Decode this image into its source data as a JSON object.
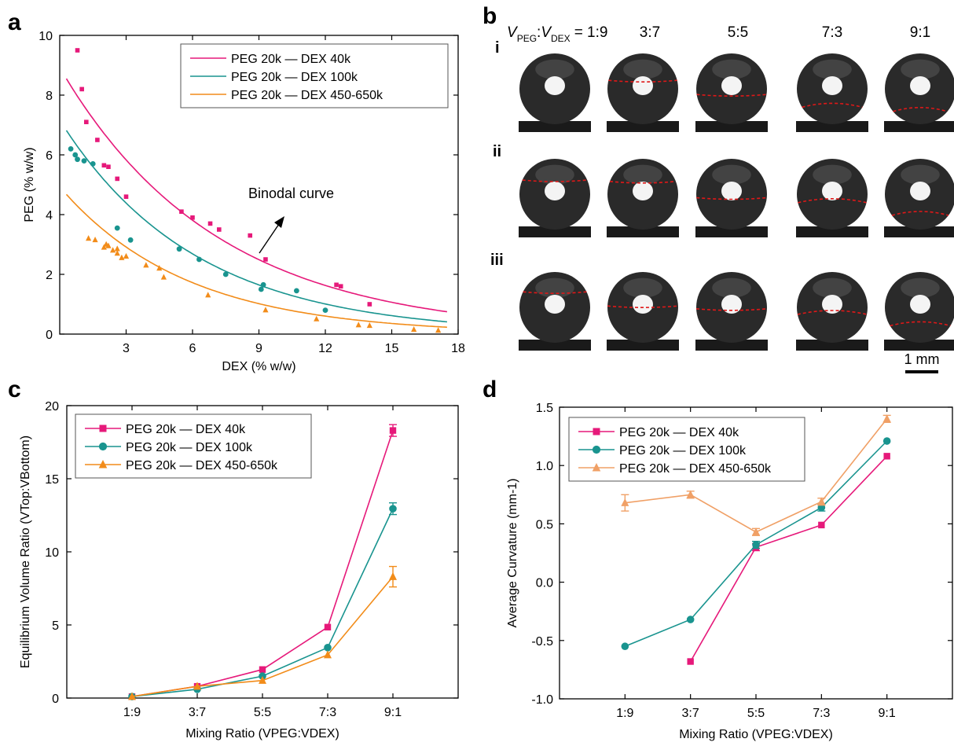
{
  "colors": {
    "pink": "#e6197a",
    "teal": "#19948f",
    "orange": "#f28c1a",
    "peach": "#f0a066",
    "droplet": "#2a2a2a",
    "interface": "#e01818"
  },
  "panel_letters": {
    "a": "a",
    "b": "b",
    "c": "c",
    "d": "d"
  },
  "binodal_label": "Binodal curve",
  "droplet_panel": {
    "ratio_prefix_v1": "V",
    "ratio_sub1": "PEG",
    "ratio_colon": ":",
    "ratio_prefix_v2": "V",
    "ratio_sub2": "DEX",
    "ratio_first": "= 1:9",
    "ratio_labels": [
      "3:7",
      "5:5",
      "7:3",
      "9:1"
    ],
    "row_labels": [
      "i",
      "ii",
      "iii"
    ],
    "scale_bar": "1 mm"
  },
  "chart_data": [
    {
      "type": "scatter",
      "panel": "a",
      "xlabel": "DEX (% w/w)",
      "ylabel": "PEG (% w/w)",
      "xlim": [
        0,
        18
      ],
      "ylim": [
        0,
        10
      ],
      "xticks": [
        "3",
        "6",
        "9",
        "12",
        "15",
        "18"
      ],
      "yticks": [
        "0",
        "2",
        "4",
        "6",
        "8",
        "10"
      ],
      "legend_position": "top-right",
      "series": [
        {
          "name": "PEG 20k — DEX 40k",
          "color": "pink",
          "marker": "square",
          "points": [
            [
              0.8,
              9.5
            ],
            [
              1.0,
              8.2
            ],
            [
              1.2,
              7.1
            ],
            [
              1.7,
              6.5
            ],
            [
              2.0,
              5.65
            ],
            [
              2.2,
              5.6
            ],
            [
              2.6,
              5.2
            ],
            [
              3.0,
              4.6
            ],
            [
              5.5,
              4.1
            ],
            [
              6.0,
              3.9
            ],
            [
              6.8,
              3.7
            ],
            [
              7.2,
              3.5
            ],
            [
              8.6,
              3.3
            ],
            [
              9.3,
              2.5
            ],
            [
              12.5,
              1.65
            ],
            [
              12.7,
              1.6
            ],
            [
              14.0,
              1.0
            ]
          ],
          "fit": {
            "a": 8.92,
            "b": 0.1417
          }
        },
        {
          "name": "PEG 20k — DEX 100k",
          "color": "teal",
          "marker": "circle",
          "points": [
            [
              0.5,
              6.2
            ],
            [
              0.7,
              6.0
            ],
            [
              0.8,
              5.85
            ],
            [
              1.1,
              5.8
            ],
            [
              1.5,
              5.7
            ],
            [
              2.6,
              3.55
            ],
            [
              3.2,
              3.15
            ],
            [
              5.4,
              2.85
            ],
            [
              6.3,
              2.5
            ],
            [
              7.5,
              2.0
            ],
            [
              9.1,
              1.5
            ],
            [
              9.2,
              1.65
            ],
            [
              10.7,
              1.45
            ],
            [
              12.0,
              0.8
            ]
          ],
          "fit": {
            "a": 7.16,
            "b": 0.1634
          }
        },
        {
          "name": "PEG 20k — DEX 450-650k",
          "color": "orange",
          "marker": "triangle",
          "points": [
            [
              1.3,
              3.2
            ],
            [
              1.6,
              3.15
            ],
            [
              2.0,
              2.9
            ],
            [
              2.1,
              3.0
            ],
            [
              2.2,
              2.95
            ],
            [
              2.4,
              2.8
            ],
            [
              2.6,
              2.85
            ],
            [
              2.6,
              2.7
            ],
            [
              2.8,
              2.55
            ],
            [
              3.0,
              2.6
            ],
            [
              3.9,
              2.3
            ],
            [
              4.5,
              2.2
            ],
            [
              4.7,
              1.9
            ],
            [
              6.7,
              1.3
            ],
            [
              9.3,
              0.8
            ],
            [
              11.6,
              0.5
            ],
            [
              13.5,
              0.3
            ],
            [
              14.0,
              0.28
            ],
            [
              16.0,
              0.15
            ],
            [
              17.1,
              0.12
            ]
          ],
          "fit": {
            "a": 4.93,
            "b": 0.1752
          }
        }
      ]
    },
    {
      "type": "line",
      "panel": "c",
      "xlabel": "Mixing Ratio (VPEG:VDEX)",
      "ylabel": "Equilibrium Volume Ratio (VTop:VBottom)",
      "categories": [
        "1:9",
        "3:7",
        "5:5",
        "7:3",
        "9:1"
      ],
      "ylim": [
        0,
        20
      ],
      "yticks": [
        "0",
        "5",
        "10",
        "15",
        "20"
      ],
      "legend_position": "top-left",
      "series": [
        {
          "name": "PEG 20k — DEX 40k",
          "color": "pink",
          "marker": "square",
          "values": [
            0.1,
            0.8,
            1.95,
            4.85,
            18.3
          ],
          "errors": [
            0,
            0,
            0,
            0,
            0.4
          ]
        },
        {
          "name": "PEG 20k — DEX 100k",
          "color": "teal",
          "marker": "circle",
          "values": [
            0.1,
            0.6,
            1.5,
            3.45,
            12.95
          ],
          "errors": [
            0,
            0,
            0,
            0,
            0.4
          ]
        },
        {
          "name": "PEG 20k — DEX 450-650k",
          "color": "orange",
          "marker": "triangle",
          "values": [
            0.1,
            0.8,
            1.2,
            2.95,
            8.3
          ],
          "errors": [
            0,
            0,
            0,
            0,
            0.7
          ]
        }
      ]
    },
    {
      "type": "line",
      "panel": "d",
      "xlabel": "Mixing Ratio (VPEG:VDEX)",
      "ylabel": "Average Curvature (mm-1)",
      "categories": [
        "1:9",
        "3:7",
        "5:5",
        "7:3",
        "9:1"
      ],
      "ylim": [
        -1.0,
        1.5
      ],
      "yticks": [
        "-1.0",
        "-0.5",
        "0.0",
        "0.5",
        "1.0",
        "1.5"
      ],
      "legend_position": "top-left",
      "series": [
        {
          "name": "PEG 20k — DEX 40k",
          "color": "pink",
          "marker": "square",
          "values": [
            null,
            -0.68,
            0.3,
            0.49,
            1.08
          ],
          "errors": [
            0,
            0,
            0.03,
            0,
            0
          ]
        },
        {
          "name": "PEG 20k — DEX 100k",
          "color": "teal",
          "marker": "circle",
          "values": [
            -0.55,
            -0.32,
            0.32,
            0.64,
            1.21
          ],
          "errors": [
            0,
            0,
            0.03,
            0.03,
            0
          ]
        },
        {
          "name": "PEG 20k — DEX 450-650k",
          "color": "peach",
          "marker": "triangle",
          "values": [
            0.68,
            0.75,
            0.43,
            0.69,
            1.4
          ],
          "errors": [
            0.07,
            0.03,
            0.03,
            0.03,
            0.03
          ]
        }
      ]
    }
  ]
}
